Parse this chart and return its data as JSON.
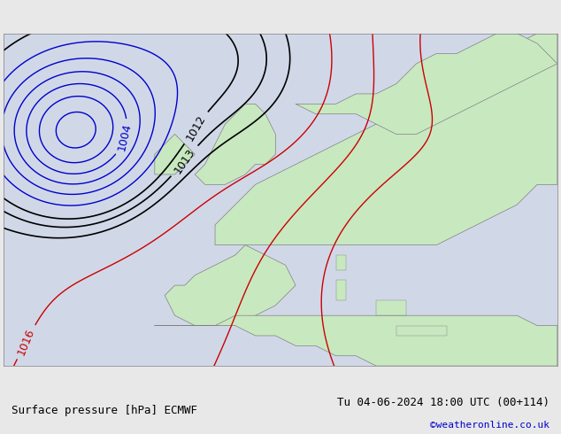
{
  "title_left": "Surface pressure [hPa] ECMWF",
  "title_right": "Tu 04-06-2024 18:00 UTC (00+114)",
  "copyright": "©weatheronline.co.uk",
  "bg_color": "#d0d8e8",
  "land_color": "#c8e8c0",
  "sea_color": "#d0d8e8",
  "coastline_color": "#808080",
  "contour_blue_color": "#0000cc",
  "contour_black_color": "#000000",
  "contour_red_color": "#cc0000",
  "label_fontsize": 9,
  "title_fontsize": 9,
  "copyright_fontsize": 8,
  "copyright_color": "#0000cc"
}
